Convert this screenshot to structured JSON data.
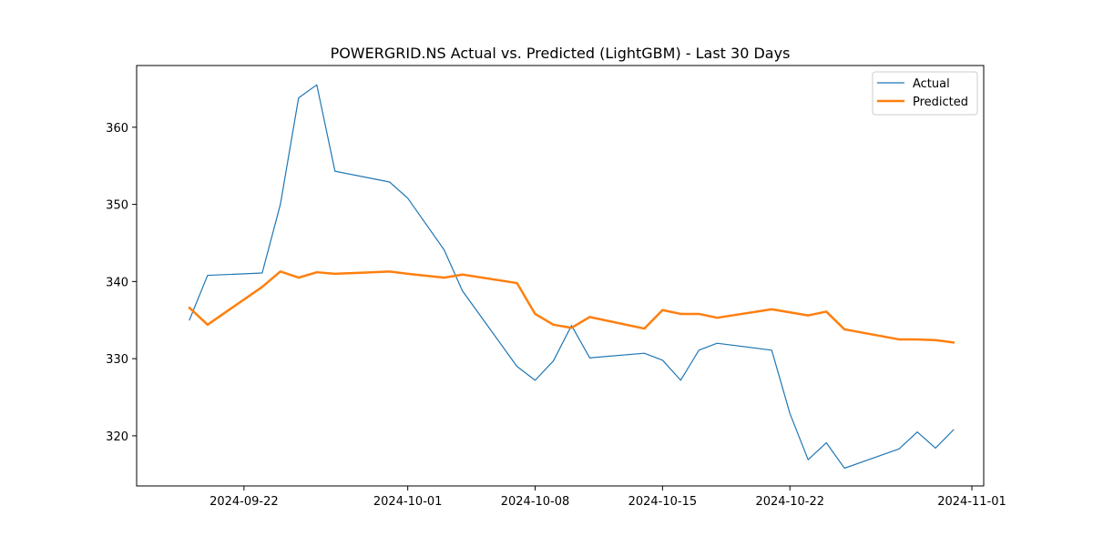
{
  "chart_data": {
    "type": "line",
    "title": "POWERGRID.NS Actual vs. Predicted (LightGBM) - Last 30 Days",
    "xlabel": "",
    "ylabel": "",
    "x_type": "date",
    "xlim": [
      "2024-09-17",
      "2024-11-01"
    ],
    "ylim": [
      313.5,
      368
    ],
    "x_ticks": [
      "2024-09-22",
      "2024-10-01",
      "2024-10-08",
      "2024-10-15",
      "2024-10-22",
      "2024-11-01"
    ],
    "y_ticks": [
      320,
      330,
      340,
      350,
      360
    ],
    "legend_position": "top-right",
    "grid": false,
    "x": [
      "2024-09-19",
      "2024-09-20",
      "2024-09-23",
      "2024-09-24",
      "2024-09-25",
      "2024-09-26",
      "2024-09-27",
      "2024-09-30",
      "2024-10-01",
      "2024-10-03",
      "2024-10-04",
      "2024-10-07",
      "2024-10-08",
      "2024-10-09",
      "2024-10-10",
      "2024-10-11",
      "2024-10-14",
      "2024-10-15",
      "2024-10-16",
      "2024-10-17",
      "2024-10-18",
      "2024-10-21",
      "2024-10-22",
      "2024-10-23",
      "2024-10-24",
      "2024-10-25",
      "2024-10-28",
      "2024-10-29",
      "2024-10-30",
      "2024-10-31"
    ],
    "series": [
      {
        "name": "Actual",
        "color": "#1f77b4",
        "values": [
          335.0,
          340.8,
          341.1,
          350.0,
          363.8,
          365.5,
          354.3,
          352.9,
          350.8,
          344.1,
          338.8,
          329.0,
          327.2,
          329.7,
          334.3,
          330.1,
          330.7,
          329.8,
          327.2,
          331.1,
          332.0,
          331.1,
          322.9,
          316.9,
          319.1,
          315.8,
          318.3,
          320.5,
          318.4,
          320.8
        ]
      },
      {
        "name": "Predicted",
        "color": "#ff7f0e",
        "values": [
          336.6,
          334.4,
          339.3,
          341.3,
          340.5,
          341.2,
          341.0,
          341.3,
          341.0,
          340.5,
          340.9,
          339.8,
          335.8,
          334.4,
          334.0,
          335.4,
          333.9,
          336.3,
          335.8,
          335.8,
          335.3,
          336.4,
          336.0,
          335.6,
          336.1,
          333.8,
          332.5,
          332.5,
          332.4,
          332.1
        ]
      }
    ]
  }
}
